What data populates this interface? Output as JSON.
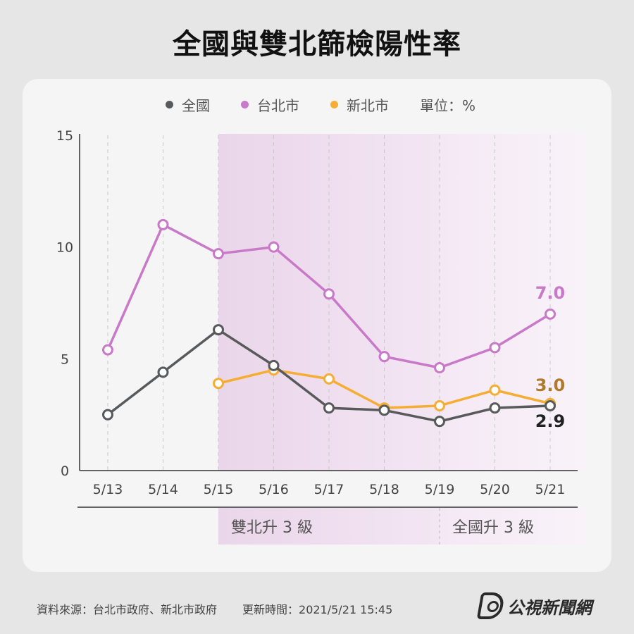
{
  "title": "全國與雙北篩檢陽性率",
  "legend": {
    "items": [
      {
        "label": "全國",
        "color": "#58595b"
      },
      {
        "label": "台北市",
        "color": "#c879c8"
      },
      {
        "label": "新北市",
        "color": "#f5ad33"
      }
    ],
    "unit": "單位：%"
  },
  "chart_data": {
    "type": "line",
    "categories": [
      "5/13",
      "5/14",
      "5/15",
      "5/16",
      "5/17",
      "5/18",
      "5/19",
      "5/20",
      "5/21"
    ],
    "ylim": [
      0,
      15
    ],
    "yticks": [
      0,
      5,
      10,
      15
    ],
    "series": [
      {
        "name": "台北市",
        "color": "#c879c8",
        "values": [
          5.4,
          11.0,
          9.7,
          10.0,
          7.9,
          5.1,
          4.6,
          5.5,
          7.0
        ]
      },
      {
        "name": "新北市",
        "color": "#f5ad33",
        "values": [
          null,
          null,
          3.9,
          4.5,
          4.1,
          2.8,
          2.9,
          3.6,
          3.0
        ]
      },
      {
        "name": "全國",
        "color": "#58595b",
        "values": [
          2.5,
          4.4,
          6.3,
          4.7,
          2.8,
          2.7,
          2.2,
          2.8,
          2.9
        ]
      }
    ],
    "end_labels": [
      {
        "series": "台北市",
        "text": "7.0",
        "color": "#c879c8"
      },
      {
        "series": "新北市",
        "text": "3.0",
        "color": "#b07a2c"
      },
      {
        "series": "全國",
        "text": "2.9",
        "color": "#222222"
      }
    ],
    "bands": [
      {
        "label": "雙北升 3 級",
        "from": "5/15",
        "to": "5/19"
      },
      {
        "label": "全國升 3 級",
        "from": "5/19",
        "to": "5/21"
      }
    ]
  },
  "footer": {
    "source": "資料來源：台北市政府、新北市政府",
    "updated": "更新時間：2021/5/21 15:45"
  },
  "logo": {
    "text": "公視新聞網"
  }
}
